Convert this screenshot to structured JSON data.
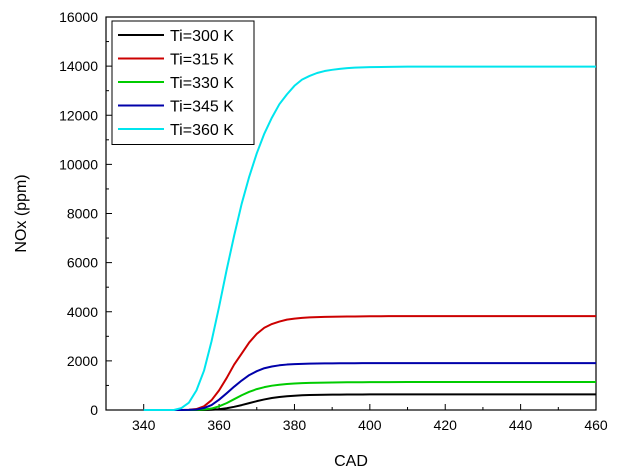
{
  "chart_data": {
    "type": "line",
    "title": "",
    "xlabel": "CAD",
    "ylabel": "NOx (ppm)",
    "xlim": [
      330,
      460
    ],
    "ylim": [
      0,
      16000
    ],
    "x_ticks": [
      340,
      360,
      380,
      400,
      420,
      440,
      460
    ],
    "y_ticks": [
      0,
      2000,
      4000,
      6000,
      8000,
      10000,
      12000,
      14000,
      16000
    ],
    "grid": false,
    "legend_position": "top-left",
    "x": [
      340,
      344,
      348,
      350,
      352,
      354,
      356,
      358,
      360,
      362,
      364,
      366,
      368,
      370,
      372,
      374,
      376,
      378,
      380,
      382,
      384,
      386,
      388,
      390,
      392,
      394,
      396,
      398,
      400,
      405,
      410,
      420,
      430,
      440,
      450,
      460
    ],
    "series": [
      {
        "name": "Ti=300 K",
        "color": "#000000",
        "values": [
          0,
          0,
          0,
          0,
          0,
          0,
          2,
          10,
          30,
          70,
          130,
          200,
          280,
          360,
          430,
          490,
          530,
          560,
          580,
          600,
          610,
          615,
          620,
          625,
          628,
          630,
          632,
          633,
          634,
          636,
          637,
          638,
          638,
          638,
          638,
          638
        ]
      },
      {
        "name": "Ti=315 K",
        "color": "#cc0000",
        "values": [
          0,
          0,
          0,
          2,
          10,
          40,
          150,
          400,
          800,
          1300,
          1850,
          2300,
          2750,
          3100,
          3350,
          3500,
          3600,
          3680,
          3720,
          3750,
          3770,
          3780,
          3790,
          3795,
          3800,
          3805,
          3808,
          3810,
          3815,
          3820,
          3820,
          3820,
          3820,
          3820,
          3820,
          3820
        ]
      },
      {
        "name": "Ti=330 K",
        "color": "#00cc00",
        "values": [
          0,
          0,
          0,
          0,
          0,
          5,
          20,
          60,
          150,
          280,
          440,
          600,
          740,
          850,
          930,
          990,
          1030,
          1060,
          1080,
          1095,
          1105,
          1110,
          1115,
          1120,
          1125,
          1128,
          1130,
          1132,
          1134,
          1136,
          1138,
          1138,
          1138,
          1138,
          1138,
          1138
        ]
      },
      {
        "name": "Ti=345 K",
        "color": "#0000aa",
        "values": [
          0,
          0,
          0,
          0,
          3,
          20,
          80,
          200,
          420,
          680,
          950,
          1200,
          1420,
          1580,
          1700,
          1770,
          1820,
          1850,
          1870,
          1880,
          1890,
          1895,
          1898,
          1900,
          1902,
          1904,
          1905,
          1906,
          1908,
          1910,
          1910,
          1910,
          1910,
          1910,
          1910,
          1910
        ]
      },
      {
        "name": "Ti=360 K",
        "color": "#00e5ee",
        "values": [
          0,
          0,
          0,
          80,
          300,
          800,
          1600,
          2800,
          4200,
          5700,
          7100,
          8400,
          9500,
          10450,
          11250,
          11900,
          12450,
          12850,
          13200,
          13450,
          13600,
          13720,
          13800,
          13850,
          13890,
          13920,
          13940,
          13950,
          13960,
          13970,
          13980,
          13980,
          13980,
          13980,
          13980,
          13980
        ]
      }
    ]
  }
}
